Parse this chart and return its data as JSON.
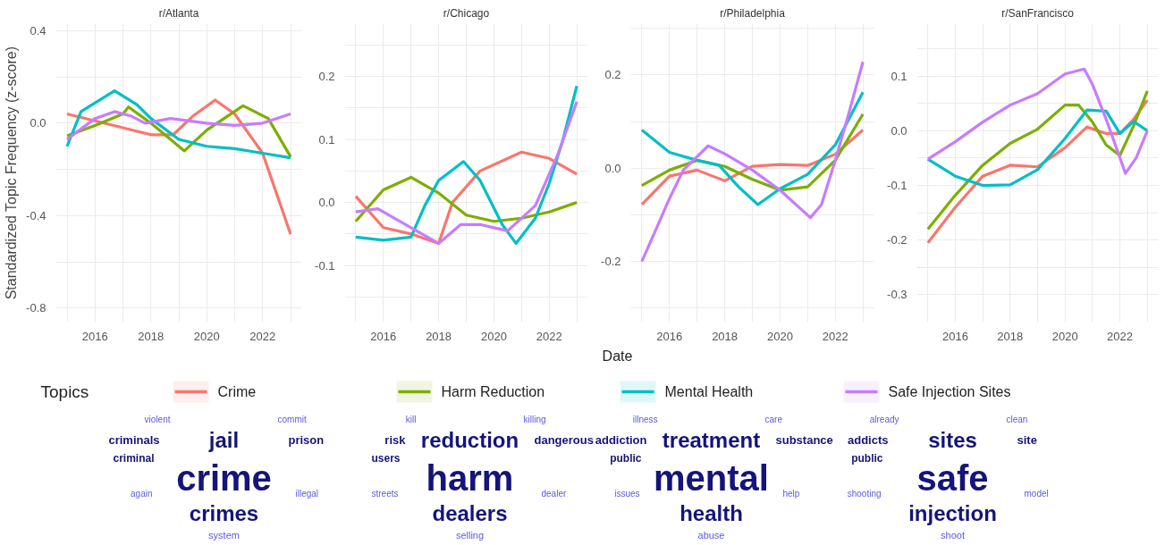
{
  "chart_data": [
    {
      "type": "line",
      "title": "r/Atlanta",
      "ylabel": "Standardized Topic Frequency (z-score)",
      "legend": "bottom",
      "legend_title": "Topics",
      "grid": true,
      "xlim": [
        2014.6,
        2023.4
      ],
      "xticks": [
        {
          "value": 2015,
          "label": null
        },
        2016,
        {
          "value": 2017,
          "label": null
        },
        2018,
        {
          "value": 2019,
          "label": null
        },
        2020,
        {
          "value": 2021,
          "label": null
        },
        2022,
        {
          "value": 2023,
          "label": null
        }
      ],
      "ylim": [
        -0.86,
        0.43
      ],
      "yticks": [
        {
          "value": 0.4,
          "label": "0.4"
        },
        {
          "value": 0.2,
          "label": null
        },
        {
          "value": 0.0,
          "label": "0.0"
        },
        {
          "value": -0.2,
          "label": null
        },
        {
          "value": -0.4,
          "label": "-0.4"
        },
        {
          "value": -0.6,
          "label": null
        },
        {
          "value": -0.8,
          "label": "-0.8"
        }
      ],
      "series": [
        {
          "name": "Crime",
          "color": "#f8766d",
          "x": [
            2015,
            2016,
            2017,
            2018,
            2018.8,
            2019.5,
            2020.3,
            2021,
            2022,
            2023
          ],
          "values": [
            0.04,
            0.01,
            -0.02,
            -0.05,
            -0.05,
            0.03,
            0.1,
            0.04,
            -0.13,
            -0.48
          ]
        },
        {
          "name": "Harm Reduction",
          "color": "#7cae00",
          "x": [
            2015,
            2016,
            2017,
            2017.2,
            2018,
            2019.2,
            2020,
            2021.3,
            2022.2,
            2023
          ],
          "values": [
            -0.055,
            -0.01,
            0.04,
            0.07,
            0.0,
            -0.12,
            -0.03,
            0.075,
            0.02,
            -0.145
          ]
        },
        {
          "name": "Mental Health",
          "color": "#00bfc4",
          "x": [
            2015,
            2015.5,
            2016.7,
            2017.5,
            2018,
            2019,
            2020,
            2021,
            2022,
            2023
          ],
          "values": [
            -0.1,
            0.05,
            0.14,
            0.08,
            0.02,
            -0.07,
            -0.1,
            -0.11,
            -0.13,
            -0.15
          ]
        },
        {
          "name": "Safe Injection Sites",
          "color": "#c77cff",
          "x": [
            2015,
            2016,
            2016.7,
            2017.3,
            2017.8,
            2018.7,
            2020,
            2021,
            2022,
            2023
          ],
          "values": [
            -0.07,
            0.02,
            0.05,
            0.03,
            0.0,
            0.02,
            0.0,
            -0.01,
            0.0,
            0.04
          ]
        }
      ],
      "annotations": [
        "crime",
        "crimes",
        "jail",
        "criminals",
        "prison",
        "criminal",
        "violent",
        "commit",
        "illegal",
        "again",
        "system"
      ]
    },
    {
      "type": "line",
      "title": "r/Chicago",
      "xlabel": "Date",
      "grid": true,
      "xlim": [
        2014.6,
        2023.4
      ],
      "xticks": [
        {
          "value": 2015,
          "label": null
        },
        2016,
        {
          "value": 2017,
          "label": null
        },
        2018,
        {
          "value": 2019,
          "label": null
        },
        2020,
        {
          "value": 2021,
          "label": null
        },
        2022,
        {
          "value": 2023,
          "label": null
        }
      ],
      "ylim": [
        -0.19,
        0.284
      ],
      "yticks": [
        {
          "value": 0.25,
          "label": null
        },
        {
          "value": 0.2,
          "label": "0.2"
        },
        {
          "value": 0.15,
          "label": null
        },
        {
          "value": 0.1,
          "label": "0.1"
        },
        {
          "value": 0.05,
          "label": null
        },
        {
          "value": 0.0,
          "label": "0.0"
        },
        {
          "value": -0.05,
          "label": null
        },
        {
          "value": -0.1,
          "label": "-0.1"
        },
        {
          "value": -0.15,
          "label": null
        }
      ],
      "series": [
        {
          "color": "#f8766d",
          "x": [
            2015,
            2016,
            2017,
            2018,
            2018.5,
            2019.5,
            2021,
            2022,
            2023
          ],
          "values": [
            0.01,
            -0.04,
            -0.05,
            -0.065,
            0.0,
            0.05,
            0.08,
            0.07,
            0.045
          ]
        },
        {
          "color": "#7cae00",
          "x": [
            2015,
            2016,
            2017,
            2018,
            2019,
            2020,
            2021,
            2022,
            2023
          ],
          "values": [
            -0.03,
            0.02,
            0.04,
            0.015,
            -0.02,
            -0.03,
            -0.025,
            -0.015,
            0.0
          ]
        },
        {
          "color": "#00bfc4",
          "x": [
            2015,
            2016,
            2017,
            2017.5,
            2018,
            2018.9,
            2019.5,
            2020.3,
            2020.8,
            2021.5,
            2022,
            2022.5,
            2023
          ],
          "values": [
            -0.055,
            -0.06,
            -0.055,
            -0.005,
            0.035,
            0.065,
            0.035,
            -0.035,
            -0.065,
            -0.025,
            0.03,
            0.1,
            0.185
          ]
        },
        {
          "color": "#c77cff",
          "x": [
            2015,
            2015.8,
            2017,
            2018,
            2018.8,
            2019.5,
            2020.5,
            2021.5,
            2022.3,
            2023
          ],
          "values": [
            -0.015,
            -0.01,
            -0.04,
            -0.065,
            -0.035,
            -0.035,
            -0.045,
            -0.005,
            0.075,
            0.16
          ]
        }
      ],
      "annotations": [
        "harm",
        "dealers",
        "reduction",
        "risk",
        "dangerous",
        "users",
        "kill",
        "killing",
        "dealer",
        "streets",
        "selling"
      ]
    },
    {
      "type": "line",
      "title": "r/Philadelphia",
      "grid": true,
      "xlim": [
        2014.6,
        2023.4
      ],
      "xticks": [
        {
          "value": 2015,
          "label": null
        },
        2016,
        {
          "value": 2017,
          "label": null
        },
        2018,
        {
          "value": 2019,
          "label": null
        },
        2020,
        {
          "value": 2021,
          "label": null
        },
        2022,
        {
          "value": 2023,
          "label": null
        }
      ],
      "ylim": [
        -0.33,
        0.31
      ],
      "yticks": [
        {
          "value": 0.3,
          "label": null
        },
        {
          "value": 0.2,
          "label": "0.2"
        },
        {
          "value": 0.1,
          "label": null
        },
        {
          "value": 0.0,
          "label": "0.0"
        },
        {
          "value": -0.1,
          "label": null
        },
        {
          "value": -0.2,
          "label": "-0.2"
        },
        {
          "value": -0.3,
          "label": null
        }
      ],
      "series": [
        {
          "color": "#f8766d",
          "x": [
            2015,
            2016,
            2017,
            2018,
            2019,
            2020,
            2021,
            2022,
            2023
          ],
          "values": [
            -0.078,
            -0.017,
            -0.004,
            -0.027,
            0.004,
            0.008,
            0.006,
            0.03,
            0.082
          ]
        },
        {
          "color": "#7cae00",
          "x": [
            2015,
            2016,
            2017,
            2018,
            2019,
            2020,
            2021,
            2022,
            2023
          ],
          "values": [
            -0.037,
            -0.004,
            0.017,
            0.004,
            -0.024,
            -0.047,
            -0.04,
            0.017,
            0.116
          ]
        },
        {
          "color": "#00bfc4",
          "x": [
            2015,
            2016,
            2017,
            2017.8,
            2018.5,
            2019.2,
            2020,
            2021,
            2022,
            2023
          ],
          "values": [
            0.082,
            0.034,
            0.017,
            0.006,
            -0.04,
            -0.078,
            -0.044,
            -0.013,
            0.05,
            0.163
          ]
        },
        {
          "color": "#c77cff",
          "x": [
            2015,
            2015.5,
            2016,
            2016.5,
            2017.4,
            2018,
            2019,
            2020,
            2021.1,
            2021.5,
            2022,
            2022.5,
            2023
          ],
          "values": [
            -0.2,
            -0.133,
            -0.065,
            -0.004,
            0.048,
            0.031,
            -0.004,
            -0.047,
            -0.106,
            -0.078,
            0.017,
            0.12,
            0.228
          ]
        }
      ],
      "annotations": [
        "mental",
        "health",
        "treatment",
        "addiction",
        "substance",
        "public",
        "illness",
        "care",
        "help",
        "issues",
        "abuse"
      ]
    },
    {
      "type": "line",
      "title": "r/SanFrancisco",
      "grid": true,
      "xlim": [
        2014.6,
        2023.4
      ],
      "xticks": [
        {
          "value": 2015,
          "label": null
        },
        2016,
        {
          "value": 2017,
          "label": null
        },
        2018,
        {
          "value": 2019,
          "label": null
        },
        2020,
        {
          "value": 2021,
          "label": null
        },
        2022,
        {
          "value": 2023,
          "label": null
        }
      ],
      "ylim": [
        -0.35,
        0.196
      ],
      "yticks": [
        {
          "value": 0.15,
          "label": null
        },
        {
          "value": 0.1,
          "label": "0.1"
        },
        {
          "value": 0.05,
          "label": null
        },
        {
          "value": 0.0,
          "label": "0.0"
        },
        {
          "value": -0.05,
          "label": null
        },
        {
          "value": -0.1,
          "label": "-0.1"
        },
        {
          "value": -0.15,
          "label": null
        },
        {
          "value": -0.2,
          "label": "-0.2"
        },
        {
          "value": -0.25,
          "label": null
        },
        {
          "value": -0.3,
          "label": "-0.3"
        }
      ],
      "series": [
        {
          "color": "#f8766d",
          "x": [
            2015,
            2016,
            2017,
            2018,
            2019,
            2020,
            2020.8,
            2021.5,
            2022,
            2022.5,
            2023
          ],
          "values": [
            -0.205,
            -0.14,
            -0.083,
            -0.063,
            -0.066,
            -0.031,
            0.007,
            -0.005,
            -0.005,
            0.021,
            0.056
          ]
        },
        {
          "color": "#7cae00",
          "x": [
            2015,
            2016,
            2017,
            2018,
            2019,
            2020,
            2020.5,
            2021,
            2021.5,
            2022,
            2022.5,
            2023
          ],
          "values": [
            -0.18,
            -0.118,
            -0.063,
            -0.023,
            0.003,
            0.047,
            0.047,
            0.016,
            -0.026,
            -0.045,
            0.009,
            0.073
          ]
        },
        {
          "color": "#00bfc4",
          "x": [
            2015,
            2016,
            2017,
            2018,
            2019,
            2020,
            2020.8,
            2021.5,
            2022,
            2022.5,
            2023
          ],
          "values": [
            -0.052,
            -0.083,
            -0.1,
            -0.099,
            -0.071,
            -0.014,
            0.038,
            0.036,
            -0.005,
            0.017,
            0.0
          ]
        },
        {
          "color": "#c77cff",
          "x": [
            2015,
            2016,
            2017,
            2018,
            2019,
            2020,
            2020.7,
            2021,
            2021.5,
            2022,
            2022.2,
            2022.6,
            2023
          ],
          "values": [
            -0.052,
            -0.02,
            0.016,
            0.047,
            0.068,
            0.104,
            0.113,
            0.085,
            0.021,
            -0.049,
            -0.078,
            -0.049,
            0.0
          ]
        }
      ],
      "annotations": [
        "safe",
        "injection",
        "sites",
        "addicts",
        "site",
        "public",
        "already",
        "clean",
        "model",
        "shooting",
        "shoot"
      ]
    }
  ]
}
